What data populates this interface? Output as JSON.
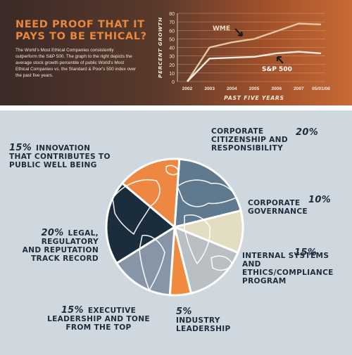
{
  "header": {
    "headline": "NEED PROOF THAT IT PAYS TO BE ETHICAL?",
    "description": "The World's Most Ethical Companies consistently outperform the S&P 500. The graph to the right depicts the average stock growth percentile of public World's Most Ethical Companies vs. the Standard & Poor's 500 index over the past five years."
  },
  "chart_data": [
    {
      "type": "line",
      "xlabel": "PAST FIVE YEARS",
      "ylabel": "PERCENT GROWTH",
      "categories": [
        "2002",
        "2003",
        "2004",
        "2005",
        "2006",
        "2007",
        "05/01/08"
      ],
      "ylim": [
        0,
        80
      ],
      "yticks": [
        0,
        10,
        20,
        30,
        40,
        50,
        60,
        70,
        80
      ],
      "grid": true,
      "series": [
        {
          "name": "WME",
          "values": [
            0,
            40,
            46,
            50,
            59,
            68,
            67
          ],
          "color": "#e6c9a4"
        },
        {
          "name": "S&P 500",
          "values": [
            0,
            27,
            28,
            29,
            33,
            35,
            33
          ],
          "color": "#f3ebe4"
        }
      ]
    },
    {
      "type": "pie",
      "slices": [
        {
          "percent": "20%",
          "name": "CORPORATE CITIZENSHIP AND RESPONSIBILITY",
          "value": 20,
          "color": "#5f7a8e"
        },
        {
          "percent": "10%",
          "name": "CORPORATE GOVERNANCE",
          "value": 10,
          "color": "#e3ddc2"
        },
        {
          "percent": "15%",
          "name": "INTERNAL SYSTEMS AND ETHICS/COMPLIANCE PROGRAM",
          "value": 15,
          "color": "#b9bfc3"
        },
        {
          "percent": "5%",
          "name": "INDUSTRY LEADERSHIP",
          "value": 5,
          "color": "#f08a3f"
        },
        {
          "percent": "15%",
          "name": "EXECUTIVE LEADERSHIP AND TONE FROM THE TOP",
          "value": 15,
          "color": "#8796a6"
        },
        {
          "percent": "20%",
          "name": "LEGAL, REGULATORY AND REPUTATION TRACK RECORD",
          "value": 20,
          "color": "#1b2c3c"
        },
        {
          "percent": "15%",
          "name": "INNOVATION THAT CONTRIBUTES TO PUBLIC WELL BEING",
          "value": 15,
          "color": "#ee8742"
        }
      ]
    }
  ]
}
